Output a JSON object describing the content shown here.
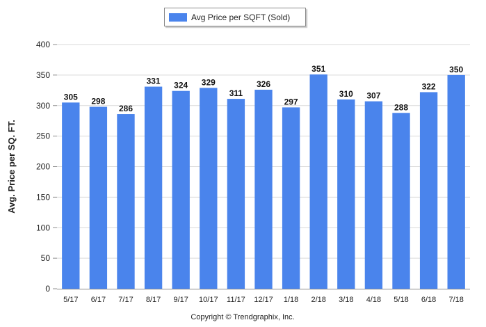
{
  "chart_data": {
    "type": "bar",
    "categories": [
      "5/17",
      "6/17",
      "7/17",
      "8/17",
      "9/17",
      "10/17",
      "11/17",
      "12/17",
      "1/18",
      "2/18",
      "3/18",
      "4/18",
      "5/18",
      "6/18",
      "7/18"
    ],
    "series": [
      {
        "name": "Avg Price per SQFT (Sold)",
        "values": [
          305,
          298,
          286,
          331,
          324,
          329,
          311,
          326,
          297,
          351,
          310,
          307,
          288,
          322,
          350
        ]
      }
    ],
    "ylabel": "Avg. Price per SQ. FT.",
    "xlabel": "",
    "ylim": [
      0,
      400
    ],
    "yticks": [
      0,
      50,
      100,
      150,
      200,
      250,
      300,
      350,
      400
    ],
    "grid": true,
    "legend_position": "top-center",
    "data_labels": true
  },
  "legend": {
    "label": "Avg Price per SQFT (Sold)"
  },
  "footer": {
    "copyright": "Copyright © Trendgraphix, Inc."
  },
  "colors": {
    "bar": "#4a84ec",
    "grid": "#d9d9d9",
    "axis": "#8c8c8c"
  }
}
